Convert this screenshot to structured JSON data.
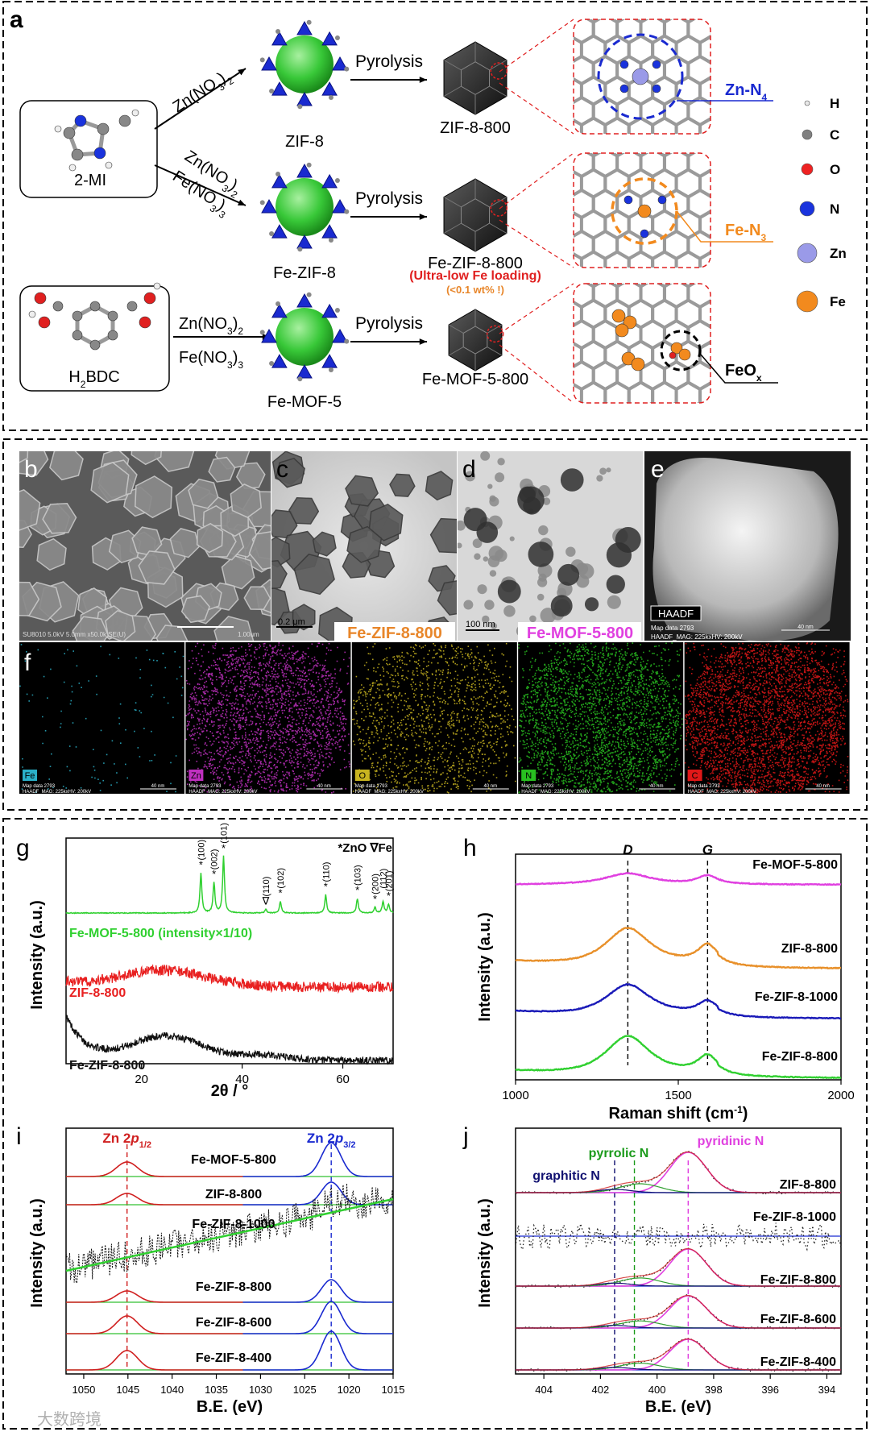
{
  "panel_a": {
    "label": "a",
    "precursors": [
      {
        "name": "2-MI",
        "sub": ""
      },
      {
        "name": "H",
        "sub": "2",
        "rest": "BDC"
      }
    ],
    "routes": [
      {
        "reagent1": "Zn(NO",
        "reagent1_sub": "3",
        "reagent1_tail": ")",
        "reagent1_sub2": "2",
        "mof": "ZIF-8",
        "step": "Pyrolysis",
        "product": "ZIF-8-800",
        "site": "Zn-N",
        "site_sub": "4"
      },
      {
        "reagent1": "Zn(NO",
        "reagent1_sub": "3",
        "reagent1_tail": ")",
        "reagent1_sub2": "2",
        "reagent2": "Fe(NO",
        "reagent2_sub": "3",
        "reagent2_tail": ")",
        "reagent2_sub2": "3",
        "mof": "Fe-ZIF-8",
        "step": "Pyrolysis",
        "product": "Fe-ZIF-8-800",
        "note1": "(Ultra-low Fe loading)",
        "note2": "(<0.1 wt% !)",
        "site": "Fe-N",
        "site_sub": "3"
      },
      {
        "reagent1": "Zn(NO",
        "reagent1_sub": "3",
        "reagent1_tail": ")",
        "reagent1_sub2": "2",
        "reagent2": "Fe(NO",
        "reagent2_sub": "3",
        "reagent2_tail": ")",
        "reagent2_sub2": "3",
        "mof": "Fe-MOF-5",
        "step": "Pyrolysis",
        "product": "Fe-MOF-5-800",
        "site": "FeO",
        "site_sub": "x"
      }
    ],
    "legend": [
      {
        "el": "H",
        "color": "#e8e8e8"
      },
      {
        "el": "C",
        "color": "#808080"
      },
      {
        "el": "O",
        "color": "#ee2222"
      },
      {
        "el": "N",
        "color": "#1a33dd"
      },
      {
        "el": "Zn",
        "color": "#9a9ae8"
      },
      {
        "el": "Fe",
        "color": "#f28a1e"
      }
    ]
  },
  "micrographs": {
    "b": {
      "label": "b",
      "info": "SU8010 5.0kV 5.0mm x50.0k SE(U)",
      "scale": "1.00um"
    },
    "c": {
      "label": "c",
      "scale": "0.2 μm",
      "caption": "Fe-ZIF-8-800",
      "caption_color": "#e8862a"
    },
    "d": {
      "label": "d",
      "scale": "100 nm",
      "caption": "Fe-MOF-5-800",
      "caption_color": "#e040e0"
    },
    "e": {
      "label": "e",
      "tag": "HAADF",
      "info1": "Map data 2793",
      "info2": "HAADF_MAG: 225kxHV: 200kV",
      "scale": "40 nm"
    }
  },
  "eds": {
    "label": "f",
    "maps": [
      {
        "el": "Fe",
        "color": "#2ab0c8"
      },
      {
        "el": "Zn",
        "color": "#c030c0"
      },
      {
        "el": "O",
        "color": "#c8b420"
      },
      {
        "el": "N",
        "color": "#28c020"
      },
      {
        "el": "C",
        "color": "#e01818"
      }
    ],
    "info1": "Map data 2793",
    "info2": "HAADF_MAG: 225kxHV: 200kV",
    "scale": "40 nm"
  },
  "chart_data": [
    {
      "id": "g",
      "type": "line",
      "label": "g",
      "xlabel": "2θ / °",
      "ylabel": "Intensity (a.u.)",
      "xlim": [
        5,
        70
      ],
      "xticks": [
        20,
        40,
        60
      ],
      "legend_note": "*ZnO ∇Fe",
      "series": [
        {
          "name": "Fe-MOF-5-800 (intensity×1/10)",
          "color": "#30d030",
          "peaks": [
            {
              "hkl": "(100)",
              "x": 31.8,
              "h": 0.55,
              "mark": "*"
            },
            {
              "hkl": "(002)",
              "x": 34.4,
              "h": 0.42,
              "mark": "*"
            },
            {
              "hkl": "(101)",
              "x": 36.3,
              "h": 0.78,
              "mark": "*"
            },
            {
              "hkl": "(110)",
              "x": 44.7,
              "h": 0.05,
              "mark": "∇"
            },
            {
              "hkl": "(102)",
              "x": 47.6,
              "h": 0.16,
              "mark": "*"
            },
            {
              "hkl": "(110)",
              "x": 56.6,
              "h": 0.25,
              "mark": "*"
            },
            {
              "hkl": "(103)",
              "x": 62.9,
              "h": 0.2,
              "mark": "*"
            },
            {
              "hkl": "(200)",
              "x": 66.4,
              "h": 0.08,
              "mark": "*"
            },
            {
              "hkl": "(112)",
              "x": 68.0,
              "h": 0.16,
              "mark": ""
            },
            {
              "hkl": "(201)",
              "x": 69.1,
              "h": 0.12,
              "mark": "*"
            }
          ]
        },
        {
          "name": "ZIF-8-800",
          "color": "#e82020"
        },
        {
          "name": "Fe-ZIF-8-800",
          "color": "#101010"
        }
      ]
    },
    {
      "id": "h",
      "type": "line",
      "label": "h",
      "xlabel": "Raman shift (cm",
      "xlabel_sup": "-1",
      "xlabel_tail": ")",
      "ylabel": "Intensity (a.u.)",
      "xlim": [
        1000,
        2000
      ],
      "xticks": [
        1000,
        1500,
        2000
      ],
      "markers": [
        {
          "name": "D",
          "x": 1345
        },
        {
          "name": "G",
          "x": 1590
        }
      ],
      "series": [
        {
          "name": "Fe-MOF-5-800",
          "color": "#e040e0"
        },
        {
          "name": "ZIF-8-800",
          "color": "#e8902a"
        },
        {
          "name": "Fe-ZIF-8-1000",
          "color": "#1a1ab8"
        },
        {
          "name": "Fe-ZIF-8-800",
          "color": "#30d030"
        }
      ]
    },
    {
      "id": "i",
      "type": "line",
      "label": "i",
      "xlabel": "B.E. (eV)",
      "ylabel": "Intensity (a.u.)",
      "xlim": [
        1052,
        1015
      ],
      "xticks": [
        1050,
        1045,
        1040,
        1035,
        1030,
        1025,
        1020,
        1015
      ],
      "peak_labels": [
        {
          "name": "Zn 2",
          "ital": "p",
          "sub": "1/2",
          "x": 1045.1,
          "color": "#d02020"
        },
        {
          "name": "Zn 2",
          "ital": "p",
          "sub": "3/2",
          "x": 1022.0,
          "color": "#1a2ad0"
        }
      ],
      "series": [
        {
          "name": "Fe-MOF-5-800"
        },
        {
          "name": "ZIF-8-800"
        },
        {
          "name": "Fe-ZIF-8-1000"
        },
        {
          "name": "Fe-ZIF-8-800"
        },
        {
          "name": "Fe-ZIF-8-600"
        },
        {
          "name": "Fe-ZIF-8-400"
        }
      ]
    },
    {
      "id": "j",
      "type": "line",
      "label": "j",
      "xlabel": "B.E. (eV)",
      "ylabel": "Intensity (a.u.)",
      "xlim": [
        405,
        393.5
      ],
      "xticks": [
        404,
        402,
        400,
        398,
        396,
        394
      ],
      "peak_labels": [
        {
          "name": "graphitic N",
          "x": 401.5,
          "color": "#101070"
        },
        {
          "name": "pyrrolic N",
          "x": 400.8,
          "color": "#1a9a1a"
        },
        {
          "name": "pyridinic N",
          "x": 398.9,
          "color": "#e040e0"
        }
      ],
      "series": [
        {
          "name": "ZIF-8-800"
        },
        {
          "name": "Fe-ZIF-8-1000"
        },
        {
          "name": "Fe-ZIF-8-800"
        },
        {
          "name": "Fe-ZIF-8-600"
        },
        {
          "name": "Fe-ZIF-8-400"
        }
      ]
    }
  ],
  "watermark": "大数跨境"
}
